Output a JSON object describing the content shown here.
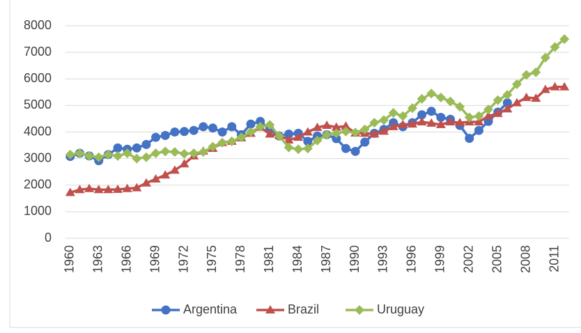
{
  "chart_data": {
    "type": "line",
    "x": [
      1960,
      1961,
      1962,
      1963,
      1964,
      1965,
      1966,
      1967,
      1968,
      1969,
      1970,
      1971,
      1972,
      1973,
      1974,
      1975,
      1976,
      1977,
      1978,
      1979,
      1980,
      1981,
      1982,
      1983,
      1984,
      1985,
      1986,
      1987,
      1988,
      1989,
      1990,
      1991,
      1992,
      1993,
      1994,
      1995,
      1996,
      1997,
      1998,
      1999,
      2000,
      2001,
      2002,
      2003,
      2004,
      2005,
      2006,
      2007,
      2008,
      2009,
      2010,
      2011,
      2012
    ],
    "xlim": [
      1959.5,
      2012.5
    ],
    "xticks": [
      1960,
      1963,
      1966,
      1969,
      1972,
      1975,
      1978,
      1981,
      1984,
      1987,
      1990,
      1993,
      1996,
      1999,
      2002,
      2005,
      2008,
      2011
    ],
    "ylim": [
      0,
      8000
    ],
    "yticks": [
      0,
      1000,
      2000,
      3000,
      4000,
      5000,
      6000,
      7000,
      8000
    ],
    "grid": true,
    "legend": "bottom",
    "series": [
      {
        "name": "Argentina",
        "color": "#4472c4",
        "marker": "circle",
        "values": [
          3080,
          3200,
          3100,
          2920,
          3150,
          3400,
          3350,
          3400,
          3530,
          3800,
          3870,
          4000,
          4020,
          4060,
          4200,
          4150,
          4000,
          4200,
          3900,
          4300,
          4400,
          4100,
          3850,
          3920,
          3950,
          3650,
          3850,
          3900,
          3750,
          3380,
          3270,
          3620,
          3950,
          4100,
          4350,
          4200,
          4350,
          4650,
          4780,
          4550,
          4480,
          4250,
          3760,
          4060,
          4400,
          4750,
          5100,
          null,
          null,
          null,
          null,
          null,
          null
        ]
      },
      {
        "name": "Brazil",
        "color": "#c0504d",
        "marker": "triangle",
        "values": [
          1720,
          1830,
          1870,
          1830,
          1830,
          1840,
          1870,
          1900,
          2080,
          2230,
          2380,
          2560,
          2800,
          3100,
          3280,
          3380,
          3600,
          3650,
          3780,
          3950,
          4180,
          3920,
          3870,
          3700,
          3800,
          4000,
          4170,
          4250,
          4180,
          4220,
          3960,
          3950,
          3920,
          4030,
          4200,
          4280,
          4300,
          4380,
          4330,
          4280,
          4380,
          4350,
          4380,
          4380,
          4600,
          4700,
          4870,
          5100,
          5300,
          5270,
          5600,
          5700,
          5700
        ]
      },
      {
        "name": "Uruguay",
        "color": "#9bbb59",
        "marker": "diamond",
        "values": [
          3150,
          3200,
          3100,
          3050,
          3150,
          3100,
          3200,
          3000,
          3050,
          3200,
          3270,
          3250,
          3180,
          3200,
          3250,
          3450,
          3600,
          3650,
          3800,
          4000,
          4200,
          4270,
          3850,
          3420,
          3350,
          3380,
          3680,
          3900,
          3950,
          4020,
          3980,
          4100,
          4350,
          4450,
          4720,
          4600,
          4900,
          5250,
          5450,
          5300,
          5150,
          4950,
          4550,
          4600,
          4850,
          5200,
          5400,
          5800,
          6150,
          6250,
          6800,
          7200,
          7500
        ]
      }
    ]
  }
}
